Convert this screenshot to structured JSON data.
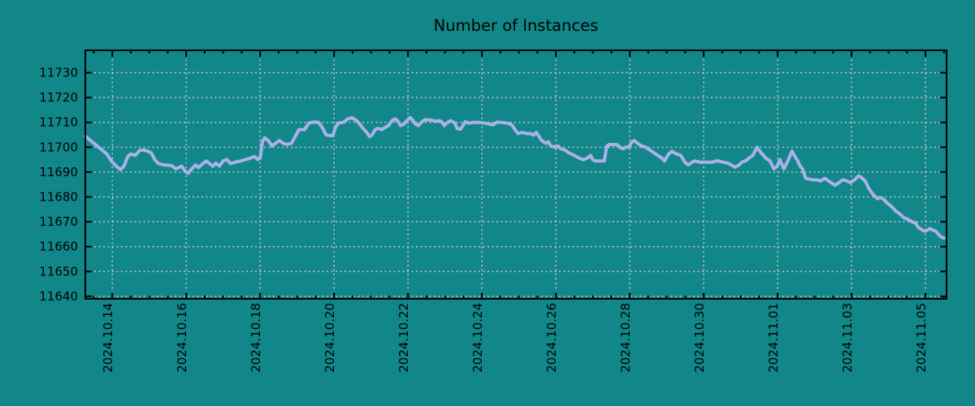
{
  "page": {
    "title": "Number of Instances"
  },
  "chart_data": {
    "type": "line",
    "title": "Number of Instances",
    "legend_position": "none",
    "grid": "dashed",
    "x_axis": {
      "unit": "days since 2024.10.14",
      "tick_labels": [
        "2024.10.14",
        "2024.10.16",
        "2024.10.18",
        "2024.10.20",
        "2024.10.22",
        "2024.10.24",
        "2024.10.26",
        "2024.10.28",
        "2024.10.30",
        "2024.11.01",
        "2024.11.03",
        "2024.11.05"
      ],
      "tick_days": [
        0,
        2,
        4,
        6,
        8,
        10,
        12,
        14,
        16,
        18,
        20,
        22
      ],
      "minor_tick_step_days": 0.5,
      "domain_days": [
        -0.73,
        22.57
      ]
    },
    "y_axis": {
      "ticks": [
        11640,
        11650,
        11660,
        11670,
        11680,
        11690,
        11700,
        11710,
        11720,
        11730
      ],
      "domain": [
        11639,
        11739
      ]
    },
    "colors": {
      "background": "#118789",
      "line": "#acb0e8",
      "grid": "#c2c6c2",
      "axis": "#000000",
      "text": "#000000"
    },
    "series": [
      {
        "name": "Number of Instances",
        "color": "#acb0e8",
        "points_day_value": [
          [
            -0.73,
            11704.5
          ],
          [
            -0.6,
            11702.8
          ],
          [
            -0.45,
            11701.0
          ],
          [
            -0.3,
            11699.2
          ],
          [
            -0.15,
            11697.3
          ],
          [
            0.0,
            11694.0
          ],
          [
            0.1,
            11692.5
          ],
          [
            0.22,
            11691.0
          ],
          [
            0.32,
            11692.5
          ],
          [
            0.42,
            11696.3
          ],
          [
            0.5,
            11697.3
          ],
          [
            0.62,
            11696.7
          ],
          [
            0.74,
            11698.7
          ],
          [
            0.85,
            11698.9
          ],
          [
            0.95,
            11698.4
          ],
          [
            1.05,
            11697.8
          ],
          [
            1.15,
            11695.0
          ],
          [
            1.25,
            11693.4
          ],
          [
            1.38,
            11692.9
          ],
          [
            1.52,
            11692.8
          ],
          [
            1.62,
            11692.5
          ],
          [
            1.72,
            11691.3
          ],
          [
            1.8,
            11691.8
          ],
          [
            1.88,
            11692.4
          ],
          [
            1.98,
            11690.2
          ],
          [
            2.05,
            11689.5
          ],
          [
            2.15,
            11691.3
          ],
          [
            2.25,
            11692.9
          ],
          [
            2.33,
            11691.8
          ],
          [
            2.45,
            11693.4
          ],
          [
            2.55,
            11694.5
          ],
          [
            2.63,
            11693.4
          ],
          [
            2.72,
            11692.4
          ],
          [
            2.8,
            11693.6
          ],
          [
            2.9,
            11692.4
          ],
          [
            3.0,
            11694.5
          ],
          [
            3.1,
            11695.1
          ],
          [
            3.2,
            11693.4
          ],
          [
            3.33,
            11694.0
          ],
          [
            3.47,
            11694.5
          ],
          [
            3.6,
            11695.0
          ],
          [
            3.73,
            11695.6
          ],
          [
            3.85,
            11696.3
          ],
          [
            3.93,
            11695.1
          ],
          [
            4.0,
            11695.6
          ],
          [
            4.06,
            11702.2
          ],
          [
            4.12,
            11703.8
          ],
          [
            4.22,
            11702.7
          ],
          [
            4.32,
            11700.5
          ],
          [
            4.42,
            11701.6
          ],
          [
            4.52,
            11702.7
          ],
          [
            4.62,
            11701.6
          ],
          [
            4.72,
            11701.1
          ],
          [
            4.85,
            11701.6
          ],
          [
            4.95,
            11704.4
          ],
          [
            5.05,
            11707.1
          ],
          [
            5.2,
            11707.1
          ],
          [
            5.32,
            11709.8
          ],
          [
            5.45,
            11710.1
          ],
          [
            5.58,
            11710.0
          ],
          [
            5.68,
            11708.0
          ],
          [
            5.78,
            11705.0
          ],
          [
            5.9,
            11704.7
          ],
          [
            5.97,
            11704.7
          ],
          [
            6.04,
            11708.2
          ],
          [
            6.13,
            11709.8
          ],
          [
            6.25,
            11710.0
          ],
          [
            6.37,
            11711.4
          ],
          [
            6.48,
            11711.9
          ],
          [
            6.59,
            11710.9
          ],
          [
            6.67,
            11709.8
          ],
          [
            6.78,
            11707.6
          ],
          [
            6.89,
            11705.9
          ],
          [
            6.96,
            11704.3
          ],
          [
            7.03,
            11704.9
          ],
          [
            7.11,
            11707.1
          ],
          [
            7.18,
            11707.6
          ],
          [
            7.29,
            11707.1
          ],
          [
            7.36,
            11707.8
          ],
          [
            7.47,
            11708.7
          ],
          [
            7.58,
            11710.9
          ],
          [
            7.66,
            11711.4
          ],
          [
            7.73,
            11710.4
          ],
          [
            7.8,
            11708.7
          ],
          [
            7.88,
            11709.2
          ],
          [
            7.95,
            11710.4
          ],
          [
            8.06,
            11712.0
          ],
          [
            8.12,
            11711.0
          ],
          [
            8.21,
            11709.2
          ],
          [
            8.28,
            11708.7
          ],
          [
            8.39,
            11710.4
          ],
          [
            8.46,
            11711.1
          ],
          [
            8.61,
            11711.0
          ],
          [
            8.76,
            11710.4
          ],
          [
            8.83,
            11710.7
          ],
          [
            8.9,
            11710.4
          ],
          [
            8.98,
            11708.7
          ],
          [
            9.05,
            11709.8
          ],
          [
            9.15,
            11710.7
          ],
          [
            9.27,
            11709.8
          ],
          [
            9.33,
            11707.5
          ],
          [
            9.42,
            11707.3
          ],
          [
            9.49,
            11708.7
          ],
          [
            9.55,
            11710.3
          ],
          [
            9.64,
            11709.7
          ],
          [
            9.77,
            11710.0
          ],
          [
            9.93,
            11710.0
          ],
          [
            10.08,
            11709.7
          ],
          [
            10.15,
            11709.5
          ],
          [
            10.3,
            11709.0
          ],
          [
            10.41,
            11710.1
          ],
          [
            10.52,
            11710.0
          ],
          [
            10.7,
            11709.7
          ],
          [
            10.81,
            11709.0
          ],
          [
            10.92,
            11706.5
          ],
          [
            10.98,
            11705.5
          ],
          [
            11.09,
            11706.0
          ],
          [
            11.2,
            11705.5
          ],
          [
            11.31,
            11705.5
          ],
          [
            11.4,
            11704.9
          ],
          [
            11.47,
            11706.0
          ],
          [
            11.62,
            11702.7
          ],
          [
            11.73,
            11701.6
          ],
          [
            11.8,
            11702.2
          ],
          [
            11.86,
            11700.5
          ],
          [
            12.0,
            11700.0
          ],
          [
            12.06,
            11700.5
          ],
          [
            12.13,
            11699.4
          ],
          [
            12.24,
            11698.9
          ],
          [
            12.35,
            11697.8
          ],
          [
            12.5,
            11696.7
          ],
          [
            12.63,
            11695.6
          ],
          [
            12.74,
            11695.0
          ],
          [
            12.85,
            11695.6
          ],
          [
            12.94,
            11696.7
          ],
          [
            13.0,
            11695.0
          ],
          [
            13.07,
            11694.5
          ],
          [
            13.22,
            11694.5
          ],
          [
            13.31,
            11694.5
          ],
          [
            13.38,
            11700.5
          ],
          [
            13.45,
            11701.1
          ],
          [
            13.58,
            11701.1
          ],
          [
            13.66,
            11701.0
          ],
          [
            13.73,
            11700.0
          ],
          [
            13.82,
            11699.4
          ],
          [
            13.88,
            11700.0
          ],
          [
            13.97,
            11700.0
          ],
          [
            14.06,
            11702.2
          ],
          [
            14.12,
            11702.7
          ],
          [
            14.21,
            11701.6
          ],
          [
            14.32,
            11700.5
          ],
          [
            14.43,
            11700.0
          ],
          [
            14.54,
            11698.9
          ],
          [
            14.65,
            11697.8
          ],
          [
            14.76,
            11696.7
          ],
          [
            14.87,
            11695.6
          ],
          [
            14.94,
            11694.5
          ],
          [
            15.05,
            11697.3
          ],
          [
            15.14,
            11698.4
          ],
          [
            15.2,
            11697.8
          ],
          [
            15.27,
            11697.3
          ],
          [
            15.38,
            11696.7
          ],
          [
            15.49,
            11694.0
          ],
          [
            15.58,
            11692.9
          ],
          [
            15.69,
            11694.0
          ],
          [
            15.75,
            11694.5
          ],
          [
            15.9,
            11694.0
          ],
          [
            16.08,
            11694.0
          ],
          [
            16.23,
            11694.0
          ],
          [
            16.37,
            11694.6
          ],
          [
            16.52,
            11694.0
          ],
          [
            16.63,
            11693.7
          ],
          [
            16.74,
            11692.9
          ],
          [
            16.85,
            11692.0
          ],
          [
            16.96,
            11692.9
          ],
          [
            17.03,
            11694.0
          ],
          [
            17.14,
            11694.6
          ],
          [
            17.22,
            11695.6
          ],
          [
            17.33,
            11696.7
          ],
          [
            17.44,
            11700.0
          ],
          [
            17.55,
            11697.8
          ],
          [
            17.62,
            11696.7
          ],
          [
            17.68,
            11695.6
          ],
          [
            17.79,
            11694.6
          ],
          [
            17.9,
            11691.3
          ],
          [
            17.99,
            11692.4
          ],
          [
            18.06,
            11695.0
          ],
          [
            18.17,
            11691.3
          ],
          [
            18.28,
            11694.6
          ],
          [
            18.39,
            11698.4
          ],
          [
            18.45,
            11696.7
          ],
          [
            18.54,
            11694.6
          ],
          [
            18.61,
            11692.4
          ],
          [
            18.67,
            11691.3
          ],
          [
            18.76,
            11687.5
          ],
          [
            18.94,
            11686.9
          ],
          [
            19.09,
            11686.8
          ],
          [
            19.16,
            11686.4
          ],
          [
            19.27,
            11687.5
          ],
          [
            19.33,
            11686.9
          ],
          [
            19.44,
            11685.8
          ],
          [
            19.55,
            11684.7
          ],
          [
            19.66,
            11685.8
          ],
          [
            19.77,
            11686.9
          ],
          [
            19.88,
            11686.4
          ],
          [
            19.97,
            11685.8
          ],
          [
            20.08,
            11686.9
          ],
          [
            20.19,
            11688.5
          ],
          [
            20.26,
            11687.9
          ],
          [
            20.37,
            11686.4
          ],
          [
            20.48,
            11683.1
          ],
          [
            20.59,
            11680.9
          ],
          [
            20.7,
            11679.3
          ],
          [
            20.76,
            11679.8
          ],
          [
            20.85,
            11679.3
          ],
          [
            20.98,
            11677.3
          ],
          [
            21.07,
            11676.3
          ],
          [
            21.2,
            11674.3
          ],
          [
            21.29,
            11673.3
          ],
          [
            21.42,
            11671.6
          ],
          [
            21.51,
            11671.1
          ],
          [
            21.58,
            11670.5
          ],
          [
            21.64,
            11670.0
          ],
          [
            21.73,
            11669.5
          ],
          [
            21.8,
            11667.8
          ],
          [
            21.91,
            11666.7
          ],
          [
            21.97,
            11666.2
          ],
          [
            22.06,
            11666.7
          ],
          [
            22.12,
            11667.3
          ],
          [
            22.19,
            11666.7
          ],
          [
            22.28,
            11666.2
          ],
          [
            22.34,
            11665.1
          ],
          [
            22.41,
            11664.0
          ],
          [
            22.5,
            11663.4
          ]
        ]
      }
    ]
  }
}
